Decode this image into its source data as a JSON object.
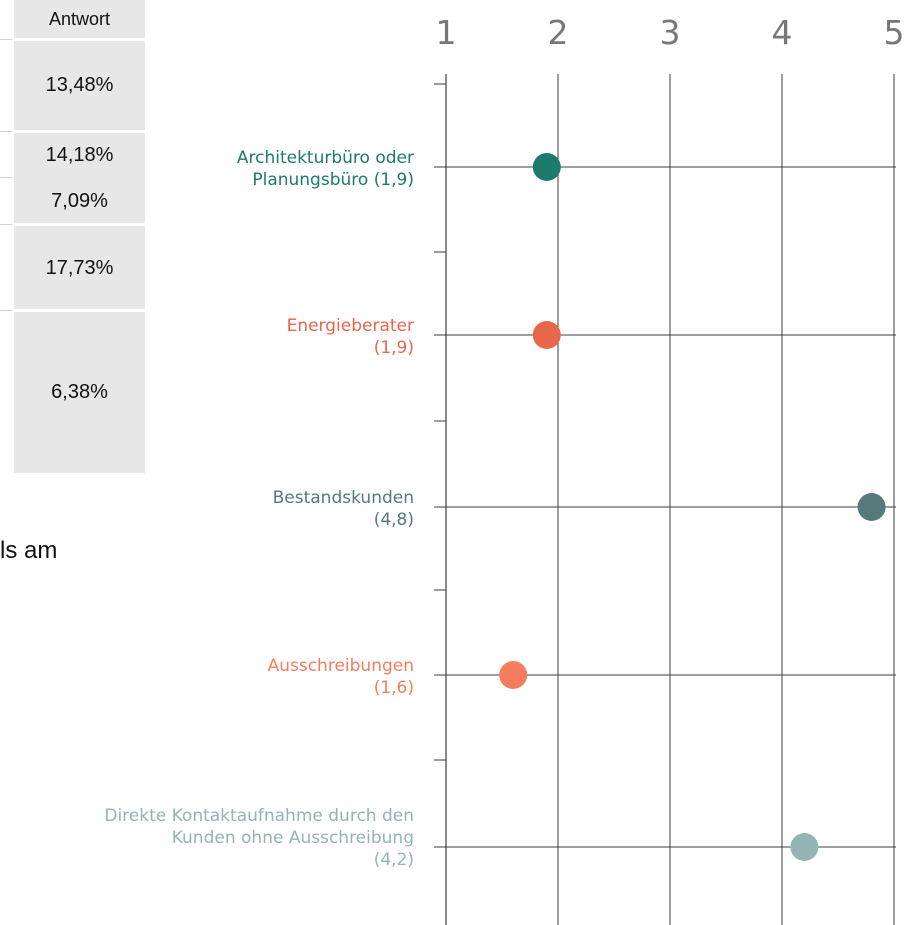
{
  "table": {
    "header": "Antwort",
    "cells": [
      "13,48%",
      "14,18%",
      "7,09%",
      "17,73%",
      "6,38%"
    ]
  },
  "partial_text": "ls am",
  "colors": {
    "grid": "#3c3c3c",
    "architektur": "#1d7a6c",
    "energie": "#e8664a",
    "bestand": "#567a7c",
    "ausschreibung": "#f47d5e",
    "direkt": "#94b4b6"
  },
  "chart_data": {
    "type": "scatter",
    "orientation": "horizontal",
    "x_ticks": [
      "1",
      "2",
      "3",
      "4",
      "5"
    ],
    "xlim": [
      1,
      5
    ],
    "grid": true,
    "points": [
      {
        "label_lines": [
          "Architekturbüro oder",
          "Planungsbüro (1,9)"
        ],
        "value": 1.9,
        "color": "#1d7a6c"
      },
      {
        "label_lines": [
          "Energieberater",
          "(1,9)"
        ],
        "value": 1.9,
        "color": "#e8664a"
      },
      {
        "label_lines": [
          "Bestandskunden",
          "(4,8)"
        ],
        "value": 4.8,
        "color": "#567a7c"
      },
      {
        "label_lines": [
          "Ausschreibungen",
          "(1,6)"
        ],
        "value": 1.6,
        "color": "#f47d5e"
      },
      {
        "label_lines": [
          "Direkte Kontaktaufnahme durch den",
          "Kunden ohne Ausschreibung",
          "(4,2)"
        ],
        "value": 4.2,
        "color": "#94b4b6"
      }
    ]
  }
}
